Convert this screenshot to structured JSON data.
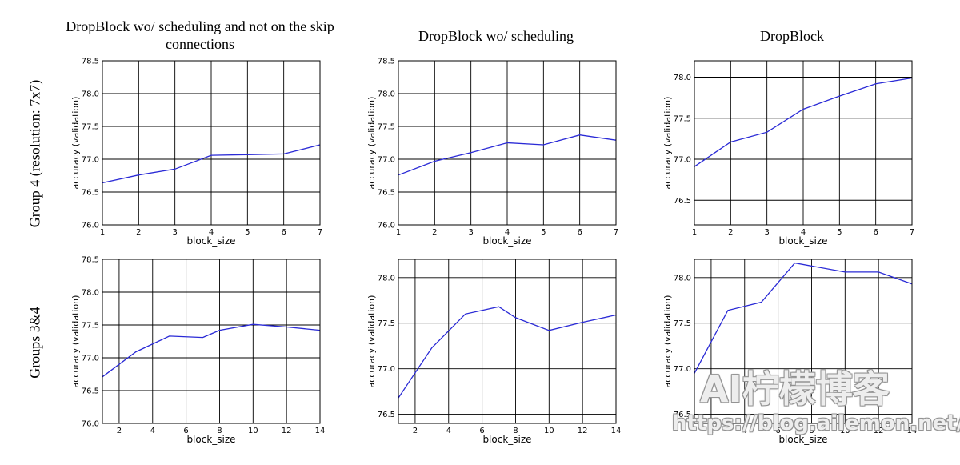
{
  "titles": {
    "col1": "DropBlock wo/ scheduling and not on the skip connections",
    "col2": "DropBlock wo/ scheduling",
    "col3": "DropBlock"
  },
  "row_labels": {
    "row1": "Group 4 (resolution: 7x7)",
    "row2": "Groups 3&4"
  },
  "watermark": {
    "title": "AI柠檬博客",
    "url": "https://blog.ailemon.net/"
  },
  "style": {
    "line_color": "#2a2ad6",
    "axes_color": "#000000",
    "grid_color": "#000000"
  },
  "chart_data": [
    {
      "type": "line",
      "row": 1,
      "col": 1,
      "xlabel": "block_size",
      "ylabel": "accuracy (validation)",
      "xlim": [
        1,
        7
      ],
      "ylim": [
        76.0,
        78.5
      ],
      "xticks": [
        1,
        2,
        3,
        4,
        5,
        6,
        7
      ],
      "yticks": [
        76.0,
        76.5,
        77.0,
        77.5,
        78.0,
        78.5
      ],
      "grid": true,
      "series": [
        {
          "x": [
            1,
            2,
            3,
            4,
            5,
            6,
            7
          ],
          "y": [
            76.64,
            76.76,
            76.85,
            77.06,
            77.07,
            77.08,
            77.22
          ]
        }
      ]
    },
    {
      "type": "line",
      "row": 1,
      "col": 2,
      "xlabel": "block_size",
      "ylabel": "accuracy (validation)",
      "xlim": [
        1,
        7
      ],
      "ylim": [
        76.0,
        78.5
      ],
      "xticks": [
        1,
        2,
        3,
        4,
        5,
        6,
        7
      ],
      "yticks": [
        76.0,
        76.5,
        77.0,
        77.5,
        78.0,
        78.5
      ],
      "grid": true,
      "series": [
        {
          "x": [
            1,
            2,
            3,
            4,
            5,
            6,
            7
          ],
          "y": [
            76.76,
            76.97,
            77.1,
            77.25,
            77.22,
            77.37,
            77.29
          ]
        }
      ]
    },
    {
      "type": "line",
      "row": 1,
      "col": 3,
      "xlabel": "block_size",
      "ylabel": "accuracy (validation)",
      "xlim": [
        1,
        7
      ],
      "ylim": [
        76.2,
        78.2
      ],
      "xticks": [
        1,
        2,
        3,
        4,
        5,
        6,
        7
      ],
      "yticks": [
        76.5,
        77.0,
        77.5,
        78.0
      ],
      "grid": true,
      "series": [
        {
          "x": [
            1,
            2,
            3,
            4,
            5,
            6,
            7
          ],
          "y": [
            76.91,
            77.21,
            77.33,
            77.61,
            77.77,
            77.92,
            77.99
          ]
        }
      ]
    },
    {
      "type": "line",
      "row": 2,
      "col": 1,
      "xlabel": "block_size",
      "ylabel": "accuracy (validation)",
      "xlim": [
        1,
        14
      ],
      "ylim": [
        76.0,
        78.5
      ],
      "xticks": [
        2,
        4,
        6,
        8,
        10,
        12,
        14
      ],
      "yticks": [
        76.0,
        76.5,
        77.0,
        77.5,
        78.0,
        78.5
      ],
      "grid": true,
      "series": [
        {
          "x": [
            1,
            3,
            5,
            7,
            8,
            10,
            12,
            14
          ],
          "y": [
            76.71,
            77.09,
            77.33,
            77.31,
            77.42,
            77.51,
            77.47,
            77.42
          ]
        }
      ]
    },
    {
      "type": "line",
      "row": 2,
      "col": 2,
      "xlabel": "block_size",
      "ylabel": "accuracy (validation)",
      "xlim": [
        1,
        14
      ],
      "ylim": [
        76.4,
        78.2
      ],
      "xticks": [
        2,
        4,
        6,
        8,
        10,
        12,
        14
      ],
      "yticks": [
        76.5,
        77.0,
        77.5,
        78.0
      ],
      "grid": true,
      "series": [
        {
          "x": [
            1,
            3,
            5,
            7,
            8,
            10,
            12,
            14
          ],
          "y": [
            76.68,
            77.23,
            77.6,
            77.68,
            77.56,
            77.42,
            77.51,
            77.59
          ]
        }
      ]
    },
    {
      "type": "line",
      "row": 2,
      "col": 3,
      "xlabel": "block_size",
      "ylabel": "accuracy (validation)",
      "xlim": [
        1,
        14
      ],
      "ylim": [
        76.4,
        78.2
      ],
      "xticks": [
        2,
        4,
        6,
        8,
        10,
        12,
        14
      ],
      "yticks": [
        76.5,
        77.0,
        77.5,
        78.0
      ],
      "grid": true,
      "series": [
        {
          "x": [
            1,
            3,
            5,
            7,
            10,
            12,
            14
          ],
          "y": [
            76.95,
            77.64,
            77.73,
            78.16,
            78.06,
            78.06,
            77.93
          ]
        }
      ]
    }
  ]
}
